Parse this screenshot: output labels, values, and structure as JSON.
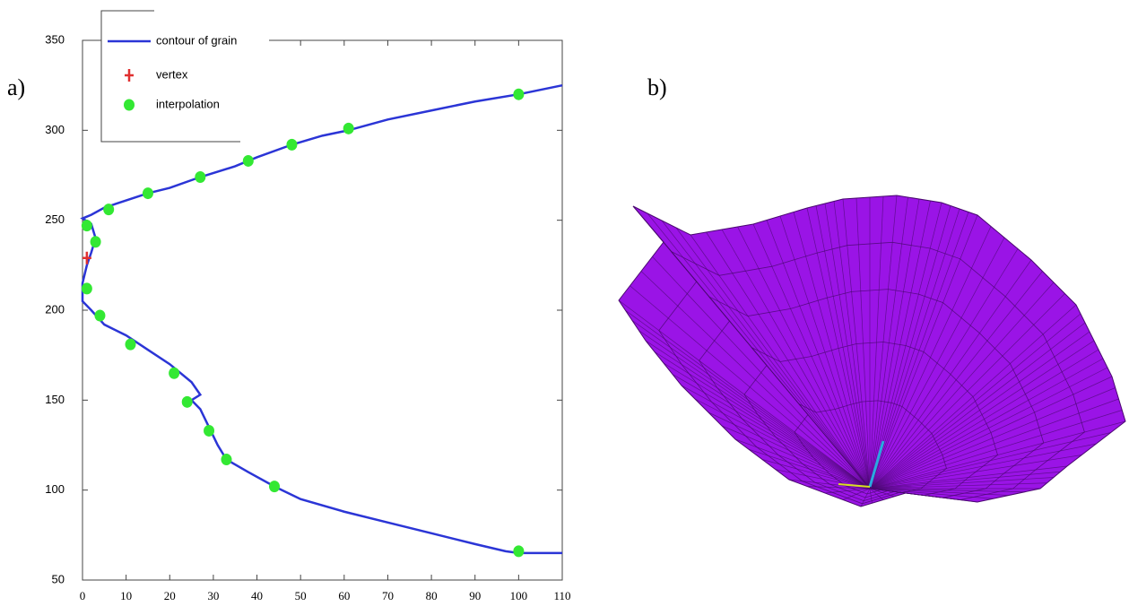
{
  "labels": {
    "a": "a)",
    "b": "b)"
  },
  "chart_data": {
    "type": "line",
    "xlim": [
      0,
      110
    ],
    "xticks": [
      0,
      10,
      20,
      30,
      40,
      50,
      60,
      70,
      80,
      90,
      100,
      110
    ],
    "ylim": [
      50,
      350
    ],
    "yticks": [
      50,
      100,
      150,
      200,
      250,
      300,
      350
    ],
    "series": [
      {
        "name": "contour of grain",
        "color": "#2b35d6",
        "type": "line",
        "x": [
          110,
          100,
          90,
          80,
          70,
          61,
          55,
          48,
          40,
          35,
          27,
          20,
          15,
          10,
          5,
          2,
          0,
          2,
          3,
          2,
          1,
          0,
          0,
          2,
          5,
          10,
          15,
          20,
          25,
          27,
          25,
          27,
          29,
          31,
          33,
          38,
          44,
          50,
          60,
          70,
          80,
          90,
          97,
          100,
          110
        ],
        "y": [
          325,
          320,
          316,
          311,
          306,
          300,
          297,
          292,
          285,
          280,
          274,
          268,
          265,
          261,
          257,
          253,
          251,
          248,
          240,
          232,
          225,
          215,
          205,
          200,
          192,
          186,
          178,
          170,
          160,
          153,
          150,
          145,
          135,
          125,
          117,
          110,
          102,
          95,
          88,
          82,
          76,
          70,
          66,
          65,
          65
        ]
      },
      {
        "name": "vertex",
        "color": "#e03030",
        "type": "scatter",
        "x": [
          1
        ],
        "y": [
          229
        ]
      },
      {
        "name": "interpolation",
        "color": "#33e833",
        "type": "scatter",
        "x": [
          100,
          61,
          48,
          38,
          27,
          15,
          6,
          1,
          3,
          1,
          4,
          11,
          21,
          24,
          29,
          33,
          44,
          100
        ],
        "y": [
          320,
          301,
          292,
          283,
          274,
          265,
          256,
          247,
          238,
          212,
          197,
          181,
          165,
          149,
          133,
          117,
          102,
          66
        ]
      }
    ]
  }
}
